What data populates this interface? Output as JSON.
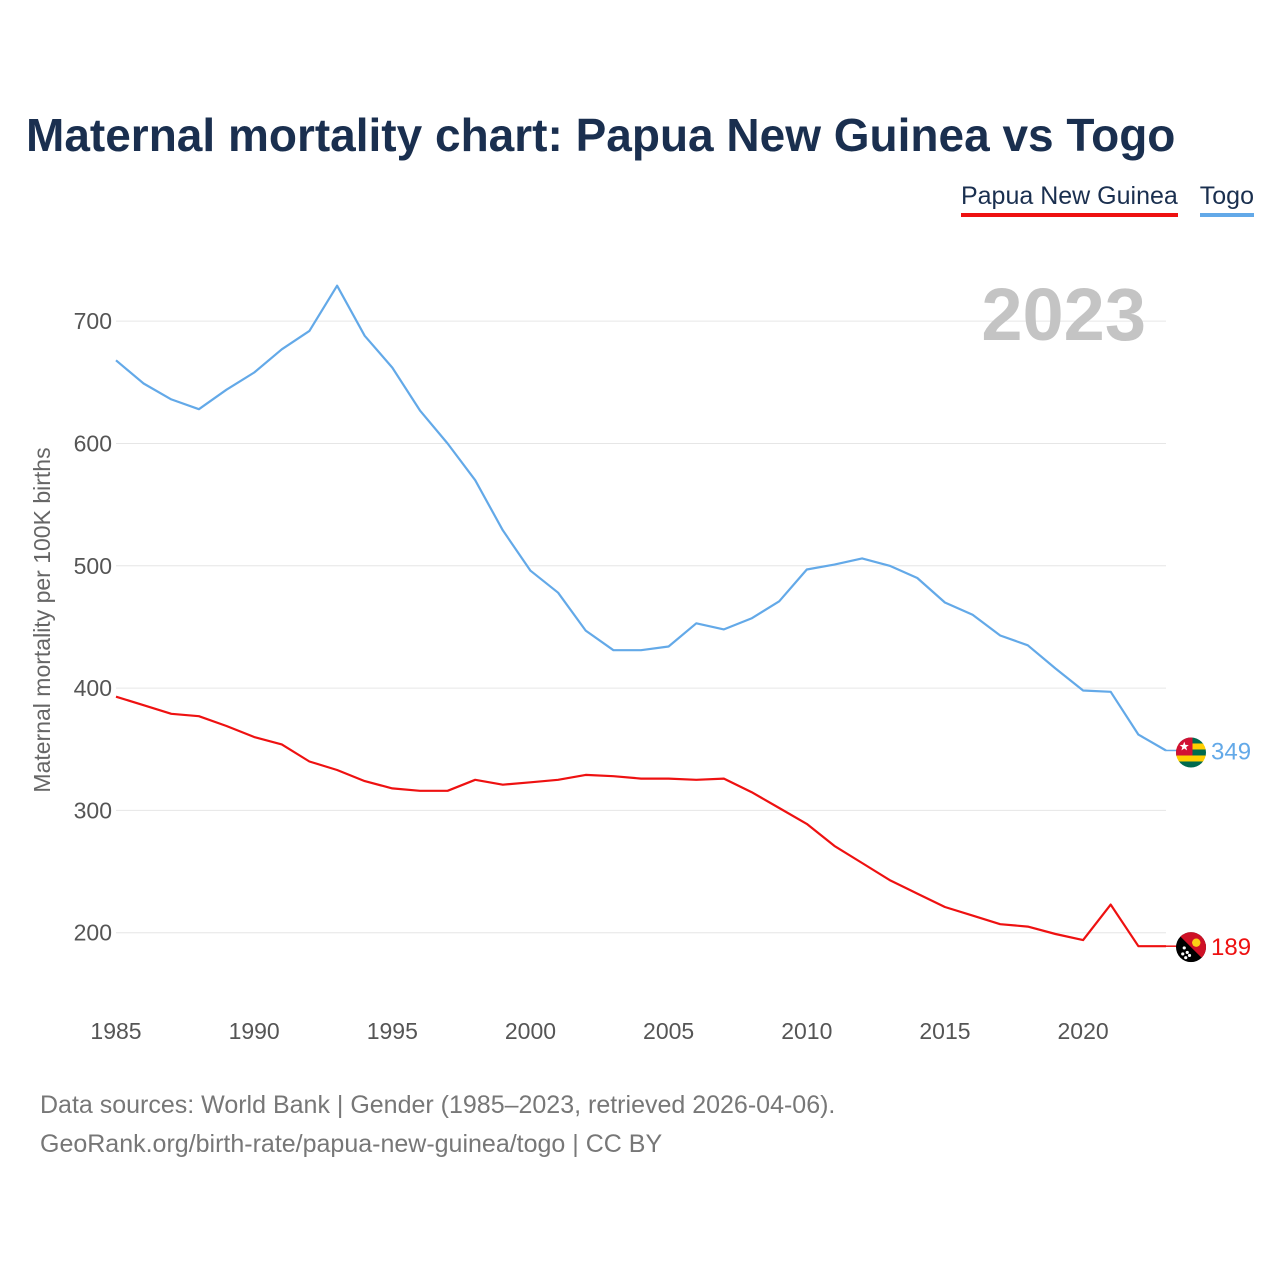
{
  "title": "Maternal mortality chart: Papua New Guinea vs Togo",
  "legend": [
    {
      "label": "Papua New Guinea",
      "color": "#ee1111"
    },
    {
      "label": "Togo",
      "color": "#63a9e8"
    }
  ],
  "footer": {
    "line1": "Data sources: World Bank | Gender (1985–2023, retrieved 2026-04-06).",
    "line2": "GeoRank.org/birth-rate/papua-new-guinea/togo | CC BY"
  },
  "flags": {
    "togo": "togo-flag-icon",
    "png": "papua-new-guinea-flag-icon"
  },
  "chart_data": {
    "type": "line",
    "title": "Maternal mortality chart: Papua New Guinea vs Togo",
    "xlabel": "",
    "ylabel": "Maternal mortality per 100K births",
    "year_label": "2023",
    "x": [
      1985,
      1986,
      1987,
      1988,
      1989,
      1990,
      1991,
      1992,
      1993,
      1994,
      1995,
      1996,
      1997,
      1998,
      1999,
      2000,
      2001,
      2002,
      2003,
      2004,
      2005,
      2006,
      2007,
      2008,
      2009,
      2010,
      2011,
      2012,
      2013,
      2014,
      2015,
      2016,
      2017,
      2018,
      2019,
      2020,
      2021,
      2022,
      2023
    ],
    "xticks": [
      1985,
      1990,
      1995,
      2000,
      2005,
      2010,
      2015,
      2020
    ],
    "yticks": [
      200,
      300,
      400,
      500,
      600,
      700
    ],
    "xlim": [
      1985,
      2023
    ],
    "ylim": [
      145,
      750
    ],
    "grid": true,
    "series": [
      {
        "name": "Papua New Guinea",
        "color": "#ee1111",
        "end_label": "189",
        "values": [
          393,
          386,
          379,
          377,
          369,
          360,
          354,
          340,
          333,
          324,
          318,
          316,
          316,
          325,
          321,
          323,
          325,
          329,
          328,
          326,
          326,
          325,
          326,
          315,
          302,
          289,
          271,
          257,
          243,
          232,
          221,
          214,
          207,
          205,
          199,
          194,
          223,
          189,
          189
        ]
      },
      {
        "name": "Togo",
        "color": "#63a9e8",
        "end_label": "349",
        "values": [
          668,
          649,
          636,
          628,
          644,
          658,
          677,
          692,
          729,
          688,
          662,
          627,
          600,
          570,
          529,
          496,
          478,
          447,
          431,
          431,
          434,
          453,
          448,
          457,
          471,
          497,
          501,
          506,
          500,
          490,
          470,
          460,
          443,
          435,
          416,
          398,
          397,
          362,
          349
        ]
      }
    ]
  }
}
